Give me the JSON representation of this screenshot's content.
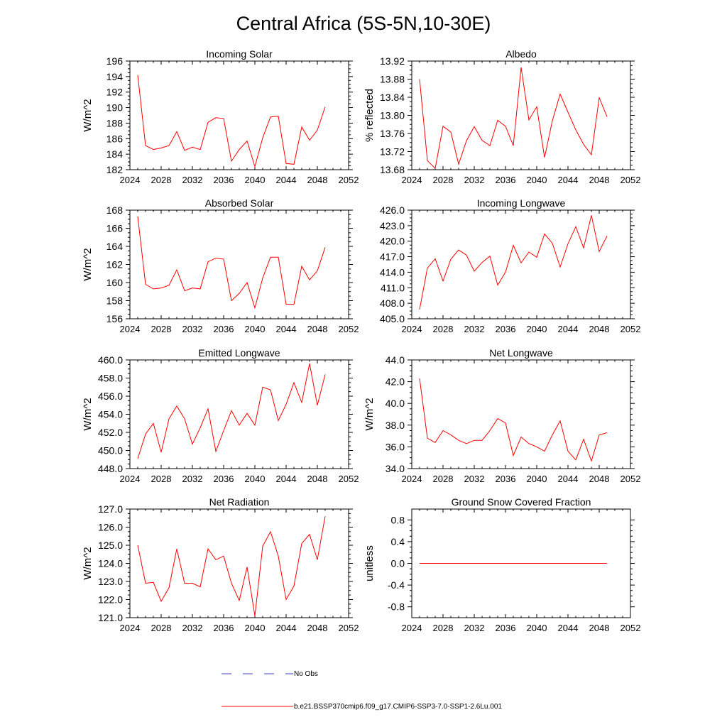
{
  "page_title": "Central Africa (5S-5N,10-30E)",
  "legend": {
    "obs_label": "No Obs",
    "model_label": "b.e21.BSSP370cmip6.f09_g17.CMIP6-SSP3-7.0-SSP1-2.6Lu.001",
    "obs_color": "#3c3cc8",
    "model_color": "#ff0000"
  },
  "chart_data": [
    {
      "type": "line",
      "title": "Incoming Solar",
      "ylabel": "W/m^2",
      "xlim": [
        2024,
        2052
      ],
      "ylim": [
        182,
        196
      ],
      "x_ticks": [
        2024,
        2028,
        2032,
        2036,
        2040,
        2044,
        2048,
        2052
      ],
      "y_ticks": [
        "182",
        "184",
        "186",
        "188",
        "190",
        "192",
        "194",
        "196"
      ],
      "x": [
        2025,
        2026,
        2027,
        2028,
        2029,
        2030,
        2031,
        2032,
        2033,
        2034,
        2035,
        2036,
        2037,
        2038,
        2039,
        2040,
        2041,
        2042,
        2043,
        2044,
        2045,
        2046,
        2047,
        2048,
        2049
      ],
      "series": [
        {
          "color": "#ff0000",
          "values": [
            194.2,
            185.1,
            184.6,
            184.8,
            185.1,
            186.9,
            184.5,
            184.9,
            184.6,
            188.1,
            188.7,
            188.6,
            183.1,
            184.6,
            185.7,
            182.4,
            186.1,
            188.8,
            188.9,
            182.8,
            182.7,
            187.5,
            185.8,
            187.1,
            190.1
          ]
        }
      ]
    },
    {
      "type": "line",
      "title": "Albedo",
      "ylabel": "% reflected",
      "xlim": [
        2024,
        2052
      ],
      "ylim": [
        13.68,
        13.92
      ],
      "x_ticks": [
        2024,
        2028,
        2032,
        2036,
        2040,
        2044,
        2048,
        2052
      ],
      "y_ticks": [
        "13.68",
        "13.72",
        "13.76",
        "13.80",
        "13.84",
        "13.88",
        "13.92"
      ],
      "x": [
        2025,
        2026,
        2027,
        2028,
        2029,
        2030,
        2031,
        2032,
        2033,
        2034,
        2035,
        2036,
        2037,
        2038,
        2039,
        2040,
        2041,
        2042,
        2043,
        2044,
        2045,
        2046,
        2047,
        2048,
        2049
      ],
      "series": [
        {
          "color": "#ff0000",
          "values": [
            13.88,
            13.7,
            13.683,
            13.776,
            13.763,
            13.692,
            13.744,
            13.775,
            13.745,
            13.733,
            13.789,
            13.776,
            13.733,
            13.906,
            13.79,
            13.819,
            13.707,
            13.788,
            13.847,
            13.807,
            13.768,
            13.736,
            13.713,
            13.839,
            13.797
          ]
        }
      ]
    },
    {
      "type": "line",
      "title": "Absorbed Solar",
      "ylabel": "W/m^2",
      "xlim": [
        2024,
        2052
      ],
      "ylim": [
        156,
        168
      ],
      "x_ticks": [
        2024,
        2028,
        2032,
        2036,
        2040,
        2044,
        2048,
        2052
      ],
      "y_ticks": [
        "156",
        "158",
        "160",
        "162",
        "164",
        "166",
        "168"
      ],
      "x": [
        2025,
        2026,
        2027,
        2028,
        2029,
        2030,
        2031,
        2032,
        2033,
        2034,
        2035,
        2036,
        2037,
        2038,
        2039,
        2040,
        2041,
        2042,
        2043,
        2044,
        2045,
        2046,
        2047,
        2048,
        2049
      ],
      "series": [
        {
          "color": "#ff0000",
          "values": [
            167.3,
            159.8,
            159.3,
            159.4,
            159.7,
            161.4,
            159.1,
            159.4,
            159.3,
            162.3,
            162.7,
            162.6,
            158.0,
            158.8,
            160.0,
            157.2,
            160.5,
            162.8,
            162.8,
            157.6,
            157.6,
            161.8,
            160.3,
            161.3,
            163.9
          ]
        }
      ]
    },
    {
      "type": "line",
      "title": "Incoming Longwave",
      "ylabel": "",
      "xlim": [
        2024,
        2052
      ],
      "ylim": [
        405,
        426
      ],
      "x_ticks": [
        2024,
        2028,
        2032,
        2036,
        2040,
        2044,
        2048,
        2052
      ],
      "y_ticks": [
        "405.0",
        "408.0",
        "411.0",
        "414.0",
        "417.0",
        "420.0",
        "423.0",
        "426.0"
      ],
      "x": [
        2025,
        2026,
        2027,
        2028,
        2029,
        2030,
        2031,
        2032,
        2033,
        2034,
        2035,
        2036,
        2037,
        2038,
        2039,
        2040,
        2041,
        2042,
        2043,
        2044,
        2045,
        2046,
        2047,
        2048,
        2049
      ],
      "series": [
        {
          "color": "#ff0000",
          "values": [
            406.8,
            414.8,
            416.6,
            412.3,
            416.5,
            418.3,
            417.3,
            414.2,
            415.9,
            417.1,
            411.5,
            414.0,
            419.2,
            415.8,
            417.9,
            416.9,
            421.4,
            419.6,
            415.0,
            419.5,
            422.8,
            418.7,
            425.0,
            418.0,
            421.0
          ]
        }
      ]
    },
    {
      "type": "line",
      "title": "Emitted Longwave",
      "ylabel": "W/m^2",
      "xlim": [
        2024,
        2052
      ],
      "ylim": [
        448,
        460
      ],
      "x_ticks": [
        2024,
        2028,
        2032,
        2036,
        2040,
        2044,
        2048,
        2052
      ],
      "y_ticks": [
        "448.0",
        "450.0",
        "452.0",
        "454.0",
        "456.0",
        "458.0",
        "460.0"
      ],
      "x": [
        2025,
        2026,
        2027,
        2028,
        2029,
        2030,
        2031,
        2032,
        2033,
        2034,
        2035,
        2036,
        2037,
        2038,
        2039,
        2040,
        2041,
        2042,
        2043,
        2044,
        2045,
        2046,
        2047,
        2048,
        2049
      ],
      "series": [
        {
          "color": "#ff0000",
          "values": [
            449.1,
            451.8,
            453.0,
            449.8,
            453.5,
            454.9,
            453.5,
            450.7,
            452.5,
            454.6,
            449.9,
            452.2,
            454.4,
            452.8,
            454.1,
            452.8,
            457.0,
            456.7,
            453.3,
            455.1,
            457.5,
            455.3,
            459.6,
            455.0,
            458.4
          ]
        }
      ]
    },
    {
      "type": "line",
      "title": "Net Longwave",
      "ylabel": "W/m^2",
      "xlim": [
        2024,
        2052
      ],
      "ylim": [
        34,
        44
      ],
      "x_ticks": [
        2024,
        2028,
        2032,
        2036,
        2040,
        2044,
        2048,
        2052
      ],
      "y_ticks": [
        "34.0",
        "36.0",
        "38.0",
        "40.0",
        "42.0",
        "44.0"
      ],
      "x": [
        2025,
        2026,
        2027,
        2028,
        2029,
        2030,
        2031,
        2032,
        2033,
        2034,
        2035,
        2036,
        2037,
        2038,
        2039,
        2040,
        2041,
        2042,
        2043,
        2044,
        2045,
        2046,
        2047,
        2048,
        2049
      ],
      "series": [
        {
          "color": "#ff0000",
          "values": [
            42.3,
            36.8,
            36.4,
            37.5,
            37.1,
            36.6,
            36.3,
            36.6,
            36.6,
            37.5,
            38.6,
            38.2,
            35.2,
            36.9,
            36.3,
            36.0,
            35.6,
            37.1,
            38.4,
            35.6,
            34.8,
            36.7,
            34.7,
            37.1,
            37.3
          ]
        }
      ]
    },
    {
      "type": "line",
      "title": "Net Radiation",
      "ylabel": "W/m^2",
      "xlim": [
        2024,
        2052
      ],
      "ylim": [
        121,
        127
      ],
      "x_ticks": [
        2024,
        2028,
        2032,
        2036,
        2040,
        2044,
        2048,
        2052
      ],
      "y_ticks": [
        "121.0",
        "122.0",
        "123.0",
        "124.0",
        "125.0",
        "126.0",
        "127.0"
      ],
      "x": [
        2025,
        2026,
        2027,
        2028,
        2029,
        2030,
        2031,
        2032,
        2033,
        2034,
        2035,
        2036,
        2037,
        2038,
        2039,
        2040,
        2041,
        2042,
        2043,
        2044,
        2045,
        2046,
        2047,
        2048,
        2049
      ],
      "series": [
        {
          "color": "#ff0000",
          "values": [
            125.0,
            122.9,
            122.95,
            121.9,
            122.65,
            124.8,
            122.9,
            122.9,
            122.7,
            124.8,
            124.2,
            124.4,
            122.9,
            121.95,
            123.8,
            121.1,
            124.95,
            125.75,
            124.4,
            122.0,
            122.75,
            125.1,
            125.6,
            124.2,
            126.6
          ]
        }
      ]
    },
    {
      "type": "line",
      "title": "Ground Snow Covered Fraction",
      "ylabel": "unitless",
      "xlim": [
        2024,
        2052
      ],
      "ylim": [
        -1.0,
        1.0
      ],
      "x_ticks": [
        2024,
        2028,
        2032,
        2036,
        2040,
        2044,
        2048,
        2052
      ],
      "y_ticks": [
        "-0.8",
        "-0.4",
        "0.0",
        "0.4",
        "0.8"
      ],
      "x": [
        2025,
        2049
      ],
      "series": [
        {
          "color": "#ff0000",
          "values": [
            0.0,
            0.0
          ]
        }
      ]
    }
  ]
}
